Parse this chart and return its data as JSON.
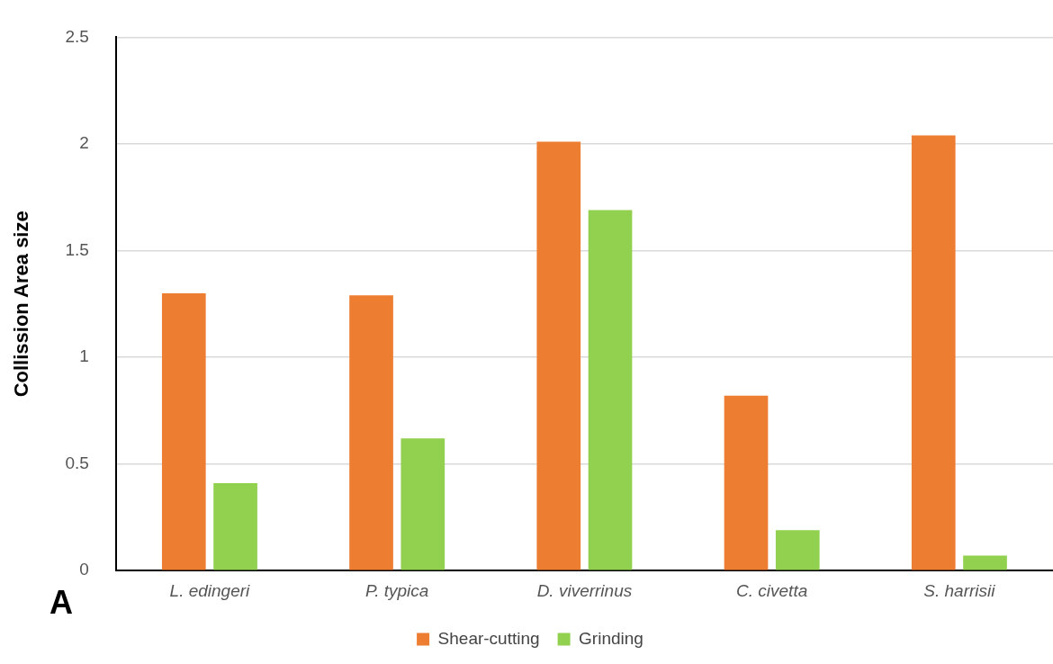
{
  "chart_data": {
    "type": "bar",
    "ylabel": "Collission Area size",
    "annotations": [
      "A"
    ],
    "categories": [
      "L. edingeri",
      "P. typica",
      "D. viverrinus",
      "C. civetta",
      "S. harrisii"
    ],
    "series": [
      {
        "name": "Shear-cutting",
        "color": "#ed7d31",
        "values": [
          1.3,
          1.29,
          2.01,
          0.82,
          2.04
        ]
      },
      {
        "name": "Grinding",
        "color": "#92d050",
        "values": [
          0.41,
          0.62,
          1.69,
          0.19,
          0.07
        ]
      }
    ],
    "ylim": [
      0,
      2.5
    ],
    "yticks": [
      0,
      0.5,
      1,
      1.5,
      2,
      2.5
    ],
    "grid": "y",
    "legend": "bottom"
  }
}
